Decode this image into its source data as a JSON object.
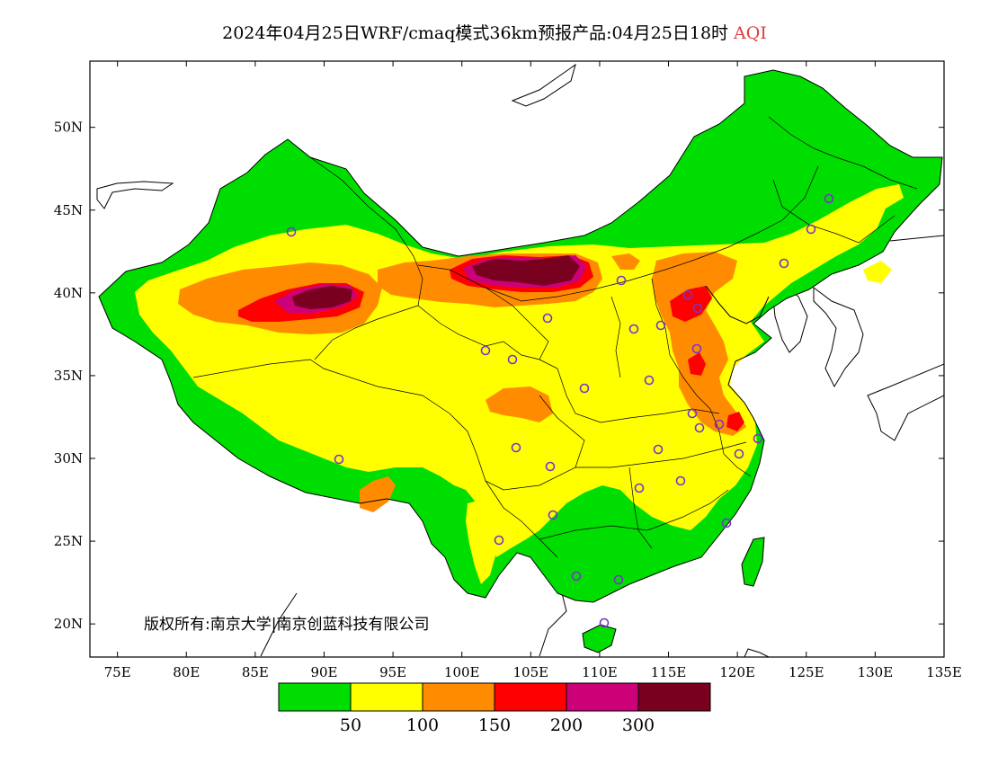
{
  "title": {
    "main": "2024年04月25日WRF/cmaq模式36km预报产品:04月25日18时",
    "variable": "AQI",
    "variable_color": "#e23b3b"
  },
  "copyright": "版权所有:南京大学|南京创蓝科技有限公司",
  "axes": {
    "x_ticks": [
      "75E",
      "80E",
      "85E",
      "90E",
      "95E",
      "100E",
      "105E",
      "110E",
      "115E",
      "120E",
      "125E",
      "130E",
      "135E"
    ],
    "y_ticks": [
      "50N",
      "45N",
      "40N",
      "35N",
      "30N",
      "25N",
      "20N"
    ],
    "lon_range": [
      73,
      135
    ],
    "lat_range": [
      18,
      54
    ]
  },
  "colorbar": {
    "colors": [
      "#00dd00",
      "#ffff00",
      "#ff8c00",
      "#ff0000",
      "#cc0077",
      "#7a0020"
    ],
    "labels": [
      "50",
      "100",
      "150",
      "200",
      "300"
    ]
  },
  "aqi_colors": {
    "good": "#00dd00",
    "moderate": "#ffff00",
    "sensitive": "#ff8c00",
    "unhealthy": "#ff0000",
    "very_unhealthy": "#cc0077",
    "hazardous": "#7a0020"
  },
  "station_color": "#7a33cc"
}
